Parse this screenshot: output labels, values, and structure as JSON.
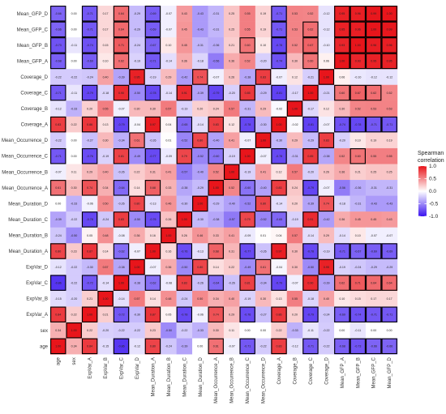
{
  "chart_data": {
    "type": "heatmap",
    "title": "",
    "variables": [
      "age",
      "sex",
      "ExpVar_A",
      "ExpVar_B",
      "ExpVar_C",
      "ExpVar_D",
      "Mean_Duration_A",
      "Mean_Duration_B",
      "Mean_Duration_C",
      "Mean_Duration_D",
      "Mean_Occurrence_A",
      "Mean_Occurrence_B",
      "Mean_Occurrence_C",
      "Mean_Occurrence_D",
      "Coverage_A",
      "Coverage_B",
      "Coverage_C",
      "Coverage_D",
      "Mean_GFP_A",
      "Mean_GFP_B",
      "Mean_GFP_C",
      "Mean_GFP_D"
    ],
    "x_order": [
      "age",
      "sex",
      "ExpVar_A",
      "ExpVar_B",
      "ExpVar_C",
      "ExpVar_D",
      "Mean_Duration_A",
      "Mean_Duration_B",
      "Mean_Duration_C",
      "Mean_Duration_D",
      "Mean_Occurrence_A",
      "Mean_Occurrence_B",
      "Mean_Occurrence_C",
      "Mean_Occurrence_D",
      "Coverage_A",
      "Coverage_B",
      "Coverage_C",
      "Coverage_D",
      "Mean_GFP_A",
      "Mean_GFP_B",
      "Mean_GFP_C",
      "Mean_GFP_D"
    ],
    "y_order_top_to_bottom": [
      "Mean_GFP_D",
      "Mean_GFP_C",
      "Mean_GFP_B",
      "Mean_GFP_A",
      "Coverage_D",
      "Coverage_C",
      "Coverage_B",
      "Coverage_A",
      "Mean_Occurrence_D",
      "Mean_Occurrence_C",
      "Mean_Occurrence_B",
      "Mean_Occurrence_A",
      "Mean_Duration_D",
      "Mean_Duration_C",
      "Mean_Duration_B",
      "Mean_Duration_A",
      "ExpVar_D",
      "ExpVar_C",
      "ExpVar_B",
      "ExpVar_A",
      "sex",
      "age"
    ],
    "matrix": [
      [
        1.0,
        0.34,
        0.84,
        -0.15,
        -0.86,
        -0.12,
        0.8,
        -0.24,
        -0.39,
        0.0,
        0.61,
        -0.07,
        -0.71,
        -0.22,
        0.83,
        -0.12,
        -0.71,
        -0.22,
        -0.68,
        -0.73,
        -0.66,
        -0.66
      ],
      [
        0.34,
        1.0,
        0.22,
        -0.2,
        -0.22,
        -0.22,
        0.23,
        -0.5,
        -0.22,
        -0.33,
        0.3,
        0.11,
        0.0,
        -0.0,
        0.22,
        -0.33,
        -0.11,
        -0.22,
        0.0,
        -0.11,
        -0.0,
        -0.0
      ],
      [
        0.84,
        0.22,
        1.0,
        0.21,
        -0.72,
        -0.3,
        0.87,
        0.05,
        -0.78,
        -0.06,
        0.74,
        0.29,
        -0.76,
        -0.27,
        0.86,
        0.2,
        -0.79,
        -0.24,
        -0.69,
        -0.74,
        -0.71,
        -0.71
      ],
      [
        -0.15,
        -0.2,
        0.21,
        1.0,
        -0.14,
        0.57,
        0.14,
        0.48,
        -0.24,
        0.5,
        0.34,
        0.4,
        -0.19,
        0.3,
        0.13,
        0.55,
        -0.18,
        0.4,
        0.1,
        0.15,
        0.17,
        0.17
      ],
      [
        -0.86,
        -0.22,
        -0.72,
        -0.14,
        1.0,
        -0.38,
        -0.62,
        -0.08,
        0.83,
        -0.26,
        -0.64,
        -0.26,
        0.81,
        -0.34,
        -0.79,
        -0.07,
        0.9,
        -0.39,
        0.62,
        0.71,
        0.64,
        0.64
      ],
      [
        -0.12,
        -0.22,
        -0.3,
        0.57,
        -0.38,
        1.0,
        -0.07,
        0.36,
        -0.5,
        0.8,
        0.14,
        0.22,
        -0.49,
        0.61,
        -0.04,
        0.3,
        -0.5,
        0.95,
        -0.19,
        -0.24,
        -0.29,
        -0.29
      ],
      [
        0.8,
        0.23,
        0.87,
        0.14,
        -0.62,
        -0.07,
        1.0,
        0.16,
        -0.76,
        -0.13,
        0.68,
        0.31,
        -0.77,
        -0.26,
        0.97,
        0.3,
        -0.78,
        -0.19,
        -0.71,
        -0.67,
        -0.69,
        -0.69
      ],
      [
        -0.24,
        -0.5,
        0.05,
        0.48,
        -0.08,
        0.36,
        0.16,
        1.0,
        0.26,
        0.46,
        0.33,
        0.41,
        -0.09,
        0.01,
        0.04,
        0.57,
        -0.14,
        0.29,
        -0.14,
        0.1,
        -0.07,
        -0.07
      ],
      [
        -0.39,
        -0.22,
        -0.78,
        -0.24,
        0.83,
        -0.5,
        -0.76,
        0.26,
        1.0,
        -0.3,
        -0.38,
        -0.57,
        0.79,
        -0.52,
        -0.65,
        -0.19,
        0.91,
        -0.42,
        0.36,
        0.45,
        0.45,
        0.43
      ],
      [
        0.0,
        -0.33,
        -0.06,
        0.5,
        -0.26,
        0.8,
        -0.13,
        0.46,
        -0.3,
        1.0,
        -0.29,
        -0.4,
        -0.52,
        0.8,
        -0.14,
        0.2,
        -0.39,
        0.74,
        -0.18,
        -0.31,
        -0.43,
        -0.43
      ],
      [
        0.61,
        0.3,
        0.74,
        0.34,
        -0.64,
        0.14,
        0.68,
        0.33,
        -0.38,
        -0.29,
        1.0,
        0.52,
        -0.6,
        -0.4,
        0.83,
        0.24,
        -0.79,
        -0.07,
        -0.56,
        -0.36,
        -0.31,
        -0.31
      ],
      [
        -0.07,
        0.11,
        0.29,
        0.4,
        -0.26,
        0.22,
        0.31,
        0.41,
        -0.57,
        -0.4,
        0.52,
        1.0,
        -0.19,
        0.41,
        0.12,
        0.57,
        -0.2,
        0.26,
        0.36,
        0.21,
        0.25,
        0.25
      ],
      [
        -0.71,
        0.0,
        -0.76,
        -0.19,
        0.81,
        -0.49,
        -0.77,
        -0.09,
        0.79,
        -0.52,
        -0.6,
        -0.19,
        1.0,
        -0.07,
        -0.78,
        -0.31,
        0.85,
        -0.38,
        0.52,
        0.6,
        0.55,
        0.55
      ],
      [
        -0.22,
        -0.0,
        -0.27,
        0.3,
        -0.34,
        0.61,
        -0.26,
        0.01,
        -0.52,
        0.8,
        -0.4,
        0.41,
        -0.07,
        1.0,
        -0.3,
        0.29,
        -0.29,
        0.83,
        -0.2,
        0.1,
        0.19,
        0.19
      ],
      [
        0.83,
        0.22,
        0.86,
        0.13,
        -0.79,
        -0.04,
        0.97,
        0.04,
        -0.65,
        -0.14,
        0.83,
        0.12,
        -0.78,
        -0.3,
        1.0,
        -0.02,
        -0.81,
        -0.07,
        -0.74,
        -0.78,
        -0.71,
        -0.71
      ],
      [
        -0.12,
        -0.33,
        0.2,
        0.55,
        -0.07,
        0.3,
        0.3,
        0.57,
        -0.19,
        0.2,
        0.24,
        0.57,
        -0.31,
        0.29,
        -0.02,
        1.0,
        -0.17,
        0.12,
        0.3,
        0.52,
        0.53,
        0.53
      ],
      [
        -0.71,
        -0.11,
        -0.79,
        -0.18,
        0.9,
        -0.5,
        -0.78,
        -0.14,
        0.91,
        -0.39,
        -0.79,
        -0.2,
        0.85,
        -0.29,
        -0.81,
        -0.17,
        1.0,
        -0.21,
        0.6,
        0.67,
        0.62,
        0.52
      ],
      [
        -0.22,
        -0.22,
        -0.24,
        0.4,
        -0.39,
        0.95,
        -0.19,
        0.29,
        -0.42,
        0.74,
        -0.07,
        0.26,
        -0.38,
        0.83,
        -0.07,
        0.12,
        -0.21,
        1.0,
        0.06,
        -0.1,
        -0.12,
        -0.12
      ],
      [
        -0.68,
        0.0,
        -0.69,
        0.1,
        0.62,
        -0.19,
        -0.71,
        -0.14,
        0.36,
        -0.18,
        -0.56,
        0.36,
        0.52,
        -0.2,
        -0.74,
        0.3,
        0.6,
        0.06,
        1.0,
        0.93,
        0.95,
        0.95
      ],
      [
        -0.73,
        -0.11,
        -0.74,
        0.15,
        0.71,
        -0.24,
        -0.67,
        0.1,
        0.45,
        -0.31,
        -0.36,
        0.21,
        0.6,
        0.1,
        -0.78,
        0.52,
        0.67,
        -0.1,
        0.93,
        1.0,
        0.96,
        0.96
      ],
      [
        -0.66,
        -0.0,
        -0.71,
        0.17,
        0.64,
        -0.29,
        -0.69,
        -0.07,
        0.45,
        -0.43,
        -0.31,
        0.25,
        0.55,
        0.19,
        -0.71,
        0.53,
        0.62,
        -0.12,
        0.95,
        0.96,
        1.0,
        0.99
      ],
      [
        -0.66,
        -0.0,
        -0.71,
        0.17,
        0.64,
        -0.29,
        -0.69,
        -0.07,
        0.43,
        -0.43,
        -0.31,
        0.25,
        0.55,
        0.19,
        -0.71,
        0.53,
        0.52,
        -0.12,
        0.95,
        0.96,
        0.99,
        1.0
      ]
    ],
    "highlight_threshold": 0.6,
    "color_scale": {
      "low": "#3b14f0",
      "mid": "#ffffff",
      "high": "#e8151b",
      "min": -1.0,
      "max": 1.0
    },
    "legend": {
      "title_lines": [
        "Spearman",
        "correlation"
      ],
      "ticks": [
        1.0,
        0.5,
        0.0,
        -0.5,
        -1.0
      ],
      "tick_labels": [
        "1.0",
        "0.5",
        "0.0",
        "-0.5",
        "-1.0"
      ],
      "placement": "right"
    }
  }
}
